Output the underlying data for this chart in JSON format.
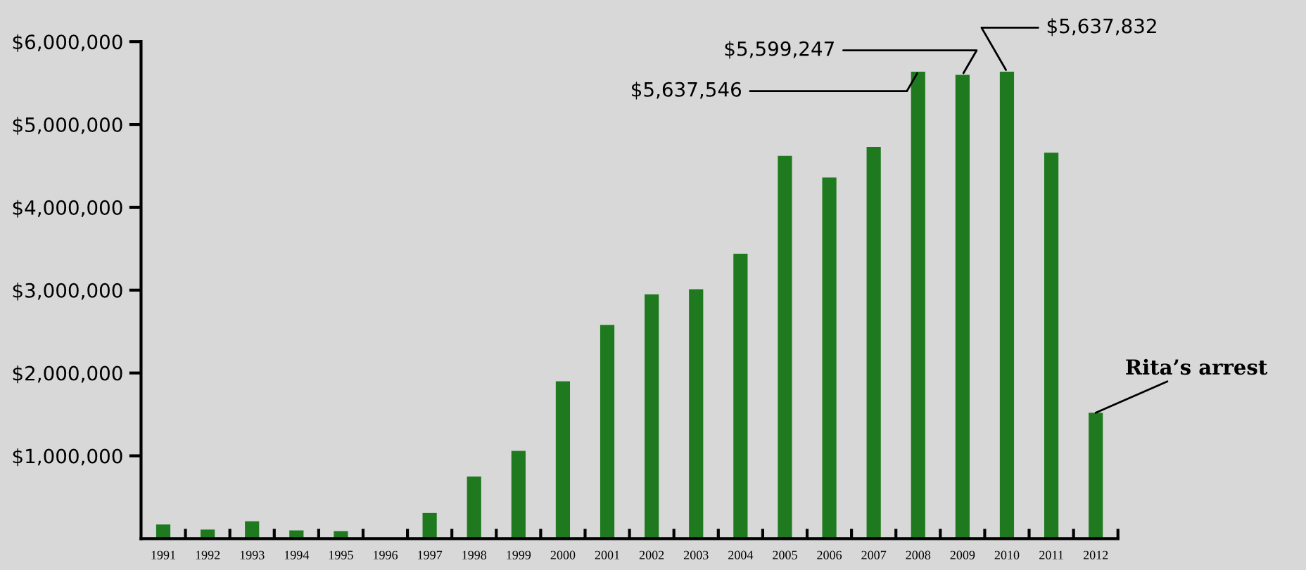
{
  "chart_data": {
    "type": "bar",
    "categories": [
      "1991",
      "1992",
      "1993",
      "1994",
      "1995",
      "1996",
      "1997",
      "1998",
      "1999",
      "2000",
      "2001",
      "2002",
      "2003",
      "2004",
      "2005",
      "2006",
      "2007",
      "2008",
      "2009",
      "2010",
      "2011",
      "2012"
    ],
    "values": [
      170000,
      110000,
      210000,
      100000,
      90000,
      0,
      310000,
      750000,
      1060000,
      1900000,
      2580000,
      2950000,
      3010000,
      3440000,
      4620000,
      4360000,
      4730000,
      5637546,
      5599247,
      5637832,
      4660000,
      1520000
    ],
    "value_labels": [
      null,
      null,
      null,
      null,
      null,
      null,
      null,
      null,
      null,
      null,
      null,
      null,
      null,
      null,
      null,
      null,
      null,
      "$5,637,546",
      "$5,599,247",
      "$5,637,832",
      null,
      null
    ],
    "color": "#1f7a1f",
    "ylim": [
      0,
      6000000
    ],
    "yticks": [
      {
        "value": 1000000,
        "label": "$1,000,000"
      },
      {
        "value": 2000000,
        "label": "$2,000,000"
      },
      {
        "value": 3000000,
        "label": "$3,000,000"
      },
      {
        "value": 4000000,
        "label": "$4,000,000"
      },
      {
        "value": 5000000,
        "label": "$5,000,000"
      },
      {
        "value": 6000000,
        "label": "$6,000,000"
      }
    ],
    "annotations": [
      {
        "text": "Rita’s arrest",
        "x": "2012",
        "y": 1520000
      }
    ],
    "grid": false,
    "legend": false
  }
}
